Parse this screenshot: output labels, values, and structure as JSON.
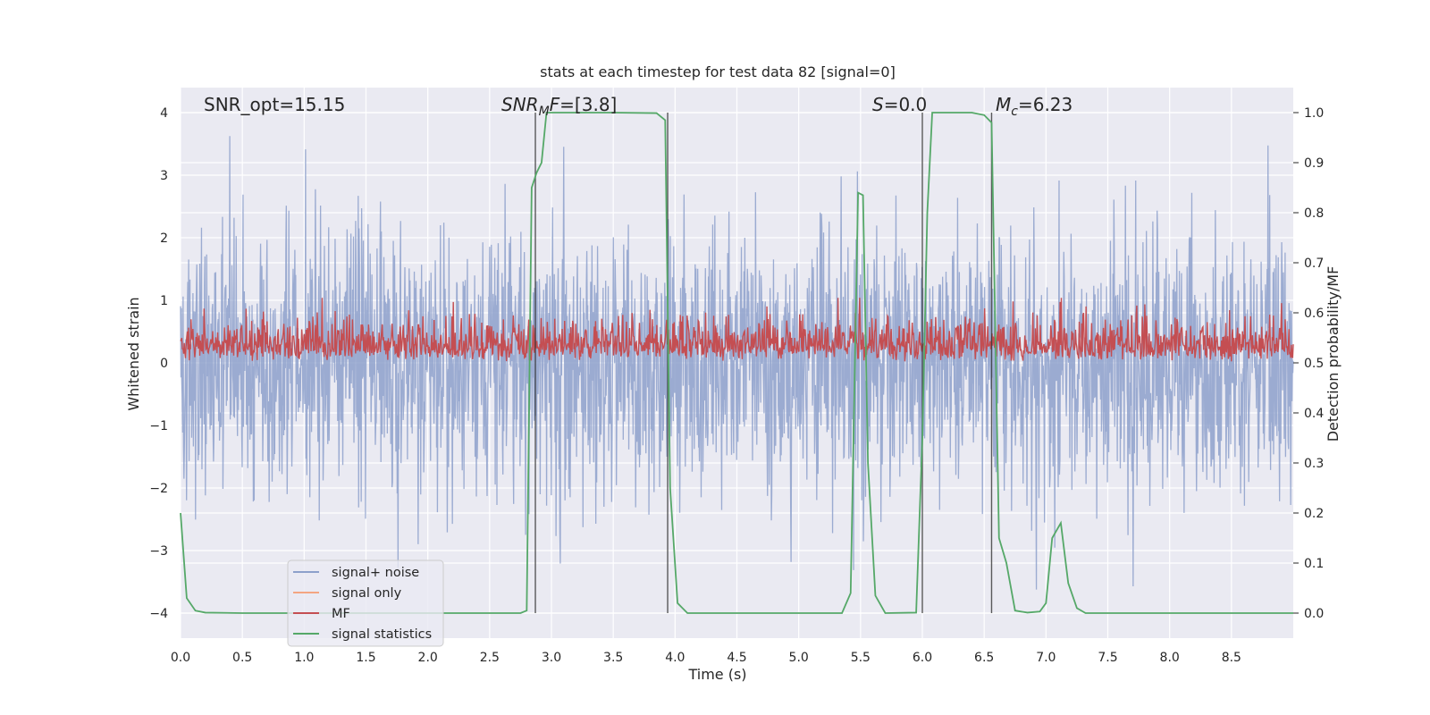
{
  "chart_data": {
    "type": "line",
    "title": "stats at each timestep for test data 82 [signal=0]",
    "xlabel": "Time (s)",
    "ylabel_left": "Whitened strain",
    "ylabel_right": "Detection probability/MF",
    "xlim": [
      0.0,
      9.0
    ],
    "ylim_left": [
      -4.4,
      4.4
    ],
    "ylim_right": [
      -0.05,
      1.05
    ],
    "x_ticks": [
      "0.0",
      "0.5",
      "1.0",
      "1.5",
      "2.0",
      "2.5",
      "3.0",
      "3.5",
      "4.0",
      "4.5",
      "5.0",
      "5.5",
      "6.0",
      "6.5",
      "7.0",
      "7.5",
      "8.0",
      "8.5"
    ],
    "y_left_ticks": [
      "−4",
      "−3",
      "−2",
      "−1",
      "0",
      "1",
      "2",
      "3",
      "4"
    ],
    "y_right_ticks": [
      "0.0",
      "0.1",
      "0.2",
      "0.3",
      "0.4",
      "0.5",
      "0.6",
      "0.7",
      "0.8",
      "0.9",
      "1.0"
    ],
    "grid": true,
    "legend_position": "lower-left",
    "annotations": [
      {
        "id": "snr-opt",
        "text": "SNR_opt=15.15",
        "x": 0.2,
        "y_left": 4.05
      },
      {
        "id": "snr-mf",
        "text": "=[3.8]",
        "x": 2.6,
        "y_left": 4.05
      },
      {
        "id": "s-value",
        "text": "=0.0",
        "x": 5.6,
        "y_left": 4.05
      },
      {
        "id": "mc-value",
        "text": "=6.23",
        "x": 6.6,
        "y_left": 4.05
      }
    ],
    "vertical_lines_x": [
      2.87,
      3.94,
      6.0,
      6.56
    ],
    "series": [
      {
        "name": "signal+ noise",
        "axis": "left",
        "color": "#8da0cb",
        "envelope_note": "dense noise, roughly within ±2.5, peaks near ±4",
        "amplitude_range": [
          -4.0,
          4.0
        ]
      },
      {
        "name": "signal only",
        "axis": "left",
        "color": "#f4a582",
        "values": []
      },
      {
        "name": "MF",
        "axis": "right",
        "color": "#c44e52",
        "range": [
          0.5,
          0.62
        ]
      },
      {
        "name": "signal statistics",
        "axis": "right",
        "color": "#55a868",
        "points": [
          [
            0.0,
            0.2
          ],
          [
            0.05,
            0.03
          ],
          [
            0.12,
            0.005
          ],
          [
            0.2,
            0.001
          ],
          [
            0.5,
            0.0
          ],
          [
            2.0,
            0.0
          ],
          [
            2.75,
            0.0
          ],
          [
            2.8,
            0.005
          ],
          [
            2.84,
            0.85
          ],
          [
            2.88,
            0.88
          ],
          [
            2.92,
            0.9
          ],
          [
            2.96,
            1.0
          ],
          [
            3.5,
            1.0
          ],
          [
            3.85,
            0.999
          ],
          [
            3.92,
            0.985
          ],
          [
            3.96,
            0.25
          ],
          [
            4.02,
            0.02
          ],
          [
            4.1,
            0.0
          ],
          [
            5.0,
            0.0
          ],
          [
            5.35,
            0.0
          ],
          [
            5.42,
            0.04
          ],
          [
            5.48,
            0.84
          ],
          [
            5.52,
            0.835
          ],
          [
            5.56,
            0.3
          ],
          [
            5.62,
            0.035
          ],
          [
            5.7,
            0.0
          ],
          [
            5.95,
            0.001
          ],
          [
            6.0,
            0.35
          ],
          [
            6.04,
            0.8
          ],
          [
            6.08,
            1.0
          ],
          [
            6.4,
            1.0
          ],
          [
            6.5,
            0.995
          ],
          [
            6.56,
            0.98
          ],
          [
            6.62,
            0.15
          ],
          [
            6.68,
            0.1
          ],
          [
            6.75,
            0.005
          ],
          [
            6.85,
            0.001
          ],
          [
            6.95,
            0.003
          ],
          [
            7.0,
            0.02
          ],
          [
            7.05,
            0.15
          ],
          [
            7.12,
            0.18
          ],
          [
            7.18,
            0.06
          ],
          [
            7.25,
            0.01
          ],
          [
            7.32,
            0.0
          ],
          [
            7.5,
            0.0
          ],
          [
            9.0,
            0.0
          ]
        ]
      }
    ]
  }
}
